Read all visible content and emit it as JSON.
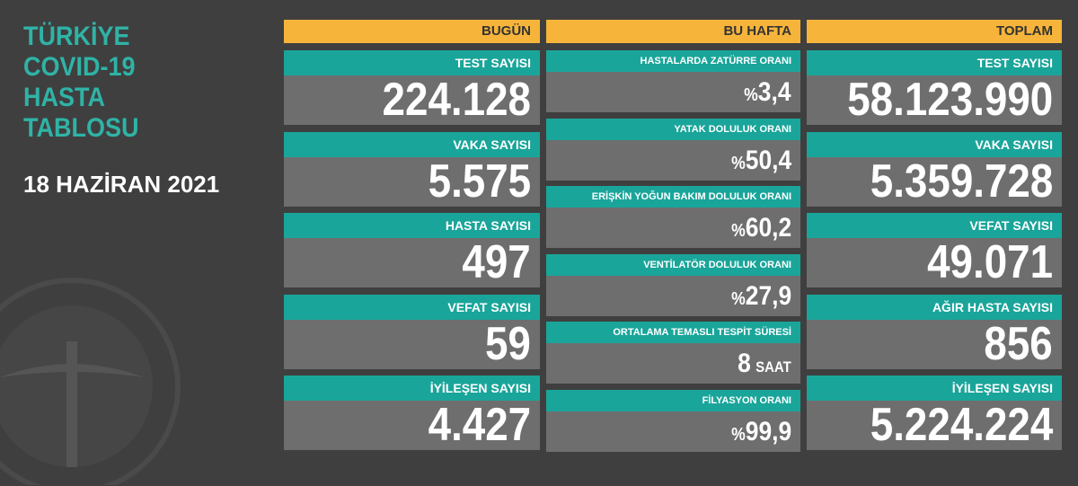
{
  "title_lines": [
    "TÜRKİYE",
    "COVID-19",
    "HASTA",
    "TABLOSU"
  ],
  "date": "18 HAZİRAN 2021",
  "columns": [
    {
      "header": "BUGÜN",
      "items": [
        {
          "label": "TEST SAYISI",
          "value": "224.128"
        },
        {
          "label": "VAKA SAYISI",
          "value": "5.575"
        },
        {
          "label": "HASTA SAYISI",
          "value": "497"
        },
        {
          "label": "VEFAT SAYISI",
          "value": "59"
        },
        {
          "label": "İYİLEŞEN SAYISI",
          "value": "4.427"
        }
      ]
    },
    {
      "header": "BU HAFTA",
      "items": [
        {
          "label": "HASTALARDA ZATÜRRE ORANI",
          "prefix": "%",
          "value": "3,4"
        },
        {
          "label": "YATAK DOLULUK ORANI",
          "prefix": "%",
          "value": "50,4"
        },
        {
          "label": "ERİŞKİN YOĞUN BAKIM DOLULUK ORANI",
          "prefix": "%",
          "value": "60,2"
        },
        {
          "label": "VENTİLATÖR DOLULUK ORANI",
          "prefix": "%",
          "value": "27,9"
        },
        {
          "label": "ORTALAMA TEMASLI TESPİT SÜRESİ",
          "value": "8",
          "unit": "SAAT"
        },
        {
          "label": "FİLYASYON ORANI",
          "prefix": "%",
          "value": "99,9"
        }
      ]
    },
    {
      "header": "TOPLAM",
      "items": [
        {
          "label": "TEST SAYISI",
          "value": "58.123.990"
        },
        {
          "label": "VAKA SAYISI",
          "value": "5.359.728"
        },
        {
          "label": "VEFAT SAYISI",
          "value": "49.071"
        },
        {
          "label": "AĞIR HASTA SAYISI",
          "value": "856"
        },
        {
          "label": "İYİLEŞEN SAYISI",
          "value": "5.224.224"
        }
      ]
    }
  ]
}
